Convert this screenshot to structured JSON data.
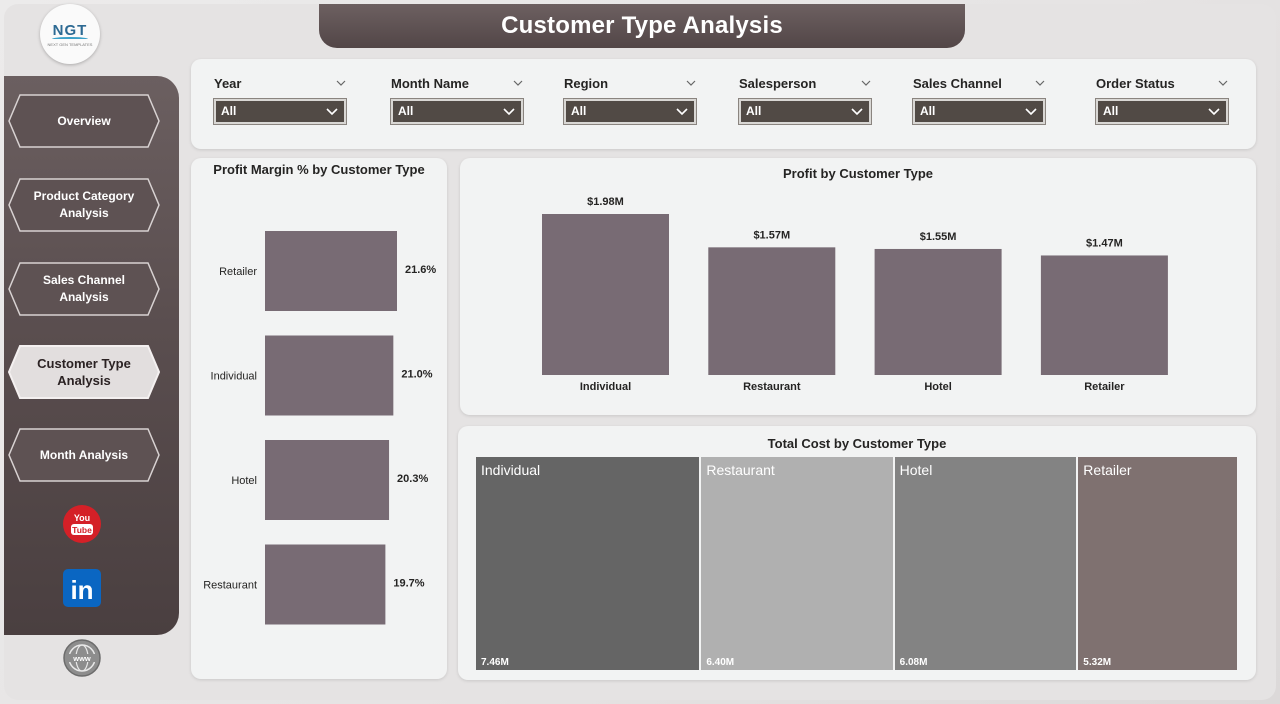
{
  "header": {
    "title": "Customer Type Analysis"
  },
  "logo": {
    "text": "NGT",
    "subtitle": "NEXT GEN TEMPLATES"
  },
  "sidebar": {
    "items": [
      {
        "label": "Overview",
        "active": false
      },
      {
        "label": "Product Category Analysis",
        "active": false
      },
      {
        "label": "Sales Channel Analysis",
        "active": false
      },
      {
        "label": "Customer Type Analysis",
        "active": true
      },
      {
        "label": "Month Analysis",
        "active": false
      }
    ],
    "social": [
      {
        "icon": "youtube-icon",
        "text": "You Tube"
      },
      {
        "icon": "linkedin-icon",
        "text": "in"
      },
      {
        "icon": "globe-icon",
        "text": "www"
      }
    ]
  },
  "filters": [
    {
      "label": "Year",
      "value": "All"
    },
    {
      "label": "Month Name",
      "value": "All"
    },
    {
      "label": "Region",
      "value": "All"
    },
    {
      "label": "Salesperson",
      "value": "All"
    },
    {
      "label": "Sales Channel",
      "value": "All"
    },
    {
      "label": "Order Status",
      "value": "All"
    }
  ],
  "colors": {
    "bar": "#786b74",
    "sidebar": "#5a4e4f",
    "treemap": [
      "#656565",
      "#b0b0b0",
      "#838383",
      "#7f7170"
    ]
  },
  "chart_data": [
    {
      "type": "bar",
      "orientation": "horizontal",
      "title": "Profit Margin % by Customer Type",
      "categories": [
        "Retailer",
        "Individual",
        "Hotel",
        "Restaurant"
      ],
      "values": [
        21.6,
        21.0,
        20.3,
        19.7
      ],
      "labels": [
        "21.6%",
        "21.0%",
        "20.3%",
        "19.7%"
      ],
      "unit": "%"
    },
    {
      "type": "bar",
      "title": "Profit by Customer Type",
      "categories": [
        "Individual",
        "Restaurant",
        "Hotel",
        "Retailer"
      ],
      "values": [
        1.98,
        1.57,
        1.55,
        1.47
      ],
      "labels": [
        "$1.98M",
        "$1.57M",
        "$1.55M",
        "$1.47M"
      ],
      "unit": "$M"
    },
    {
      "type": "treemap",
      "title": "Total Cost by Customer Type",
      "categories": [
        "Individual",
        "Restaurant",
        "Hotel",
        "Retailer"
      ],
      "values": [
        7.46,
        6.4,
        6.08,
        5.32
      ],
      "labels": [
        "7.46M",
        "6.40M",
        "6.08M",
        "5.32M"
      ]
    }
  ]
}
